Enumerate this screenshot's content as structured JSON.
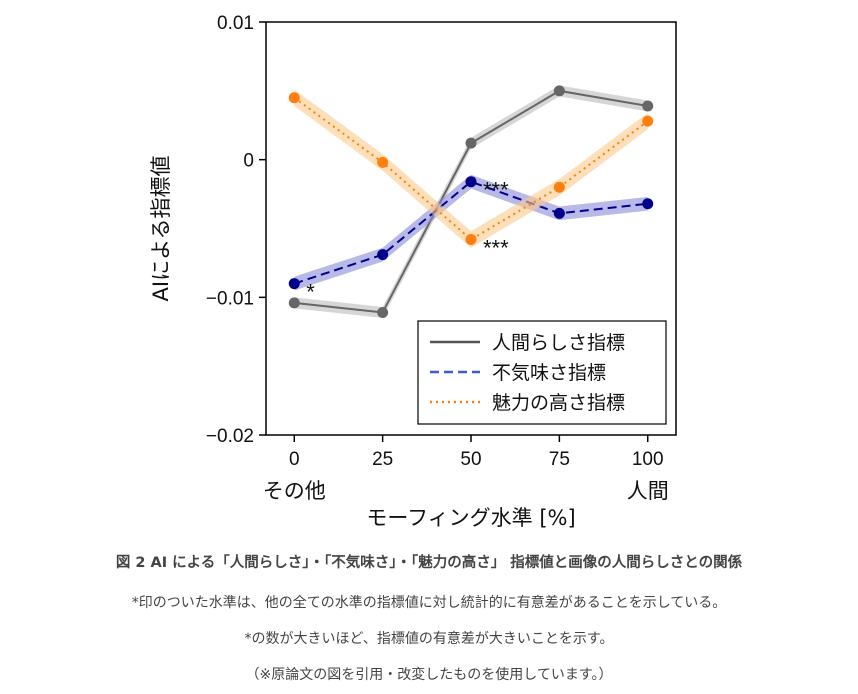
{
  "chart_data": {
    "type": "line",
    "x": [
      0,
      25,
      50,
      75,
      100
    ],
    "xlabel": "モーフィング水準 [%]",
    "ylabel": "AIによる指標値",
    "ylim": [
      -0.02,
      0.01
    ],
    "xlim": [
      -8,
      108
    ],
    "yticks": [
      -0.02,
      -0.01,
      0,
      0.01
    ],
    "ytick_labels": [
      "−0.02",
      "−0.01",
      "0",
      "0.01"
    ],
    "xticks": [
      0,
      25,
      50,
      75,
      100
    ],
    "xtick_labels": [
      "0",
      "25",
      "50",
      "75",
      "100"
    ],
    "x_category_notes": [
      {
        "x": 0,
        "label": "その他"
      },
      {
        "x": 100,
        "label": "人間"
      }
    ],
    "grid": false,
    "legend_position": "bottom-right",
    "series": [
      {
        "name": "人間らしさ指標",
        "style": "solid",
        "color": "#666666",
        "band_color": "#bbbbbb",
        "values": [
          -0.0104,
          -0.0111,
          0.0012,
          0.005,
          0.0039
        ],
        "band": 0.0004
      },
      {
        "name": "不気味さ指標",
        "style": "dashed",
        "color": "#00008b",
        "band_color": "#8a8ad8",
        "values": [
          -0.009,
          -0.0069,
          -0.0016,
          -0.0039,
          -0.0032
        ],
        "band": 0.0005
      },
      {
        "name": "魅力の高さ指標",
        "style": "dotted",
        "color": "#ff7f0e",
        "band_color": "#fbc98a",
        "values": [
          0.0045,
          -0.0002,
          -0.0058,
          -0.002,
          0.0028
        ],
        "band": 0.0006
      }
    ],
    "annotations": [
      {
        "text": "*",
        "x": 0,
        "y": -0.009
      },
      {
        "text": "***",
        "x": 50,
        "y": -0.0016
      },
      {
        "text": "***",
        "x": 50,
        "y": -0.0058
      }
    ]
  },
  "caption": {
    "title": "図 2 AI による「人間らしさ」・「不気味さ」・「魅力の高さ」 指標値と画像の人間らしさとの関係",
    "note1": "*印のついた水準は、他の全ての水準の指標値に対し統計的に有意差があることを示している。",
    "note2": "*の数が大きいほど、指標値の有意差が大きいことを示す。",
    "note3": "（※原論文の図を引用・改変したものを使用しています。）"
  }
}
